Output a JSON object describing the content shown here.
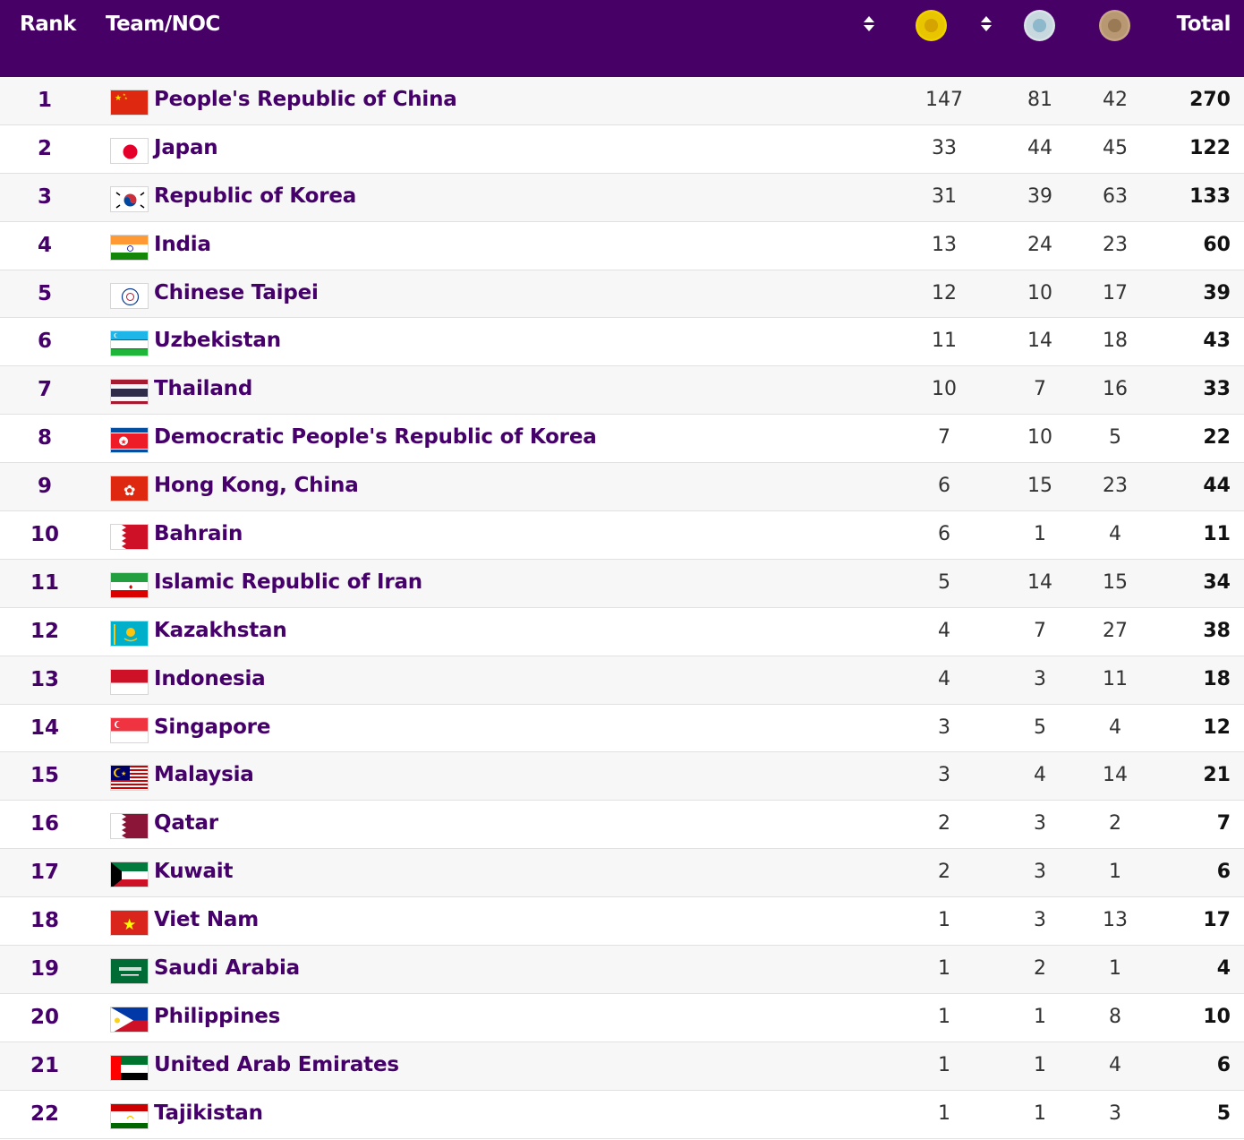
{
  "header": {
    "rank": "Rank",
    "team": "Team/NOC",
    "total": "Total",
    "medals": [
      {
        "name": "gold-medal-icon",
        "color": "#e8c200"
      },
      {
        "name": "silver-medal-icon",
        "color": "#c8d8df"
      },
      {
        "name": "bronze-medal-icon",
        "color": "#b89873"
      }
    ],
    "sort_icons": [
      "sort-icon",
      "sort-icon"
    ],
    "accent_color": "#460066"
  },
  "rows": [
    {
      "rank": "1",
      "team": "People's Republic of China",
      "flag": "china-flag-icon",
      "gold": "147",
      "silver": "81",
      "bronze": "42",
      "total": "270"
    },
    {
      "rank": "2",
      "team": "Japan",
      "flag": "japan-flag-icon",
      "gold": "33",
      "silver": "44",
      "bronze": "45",
      "total": "122"
    },
    {
      "rank": "3",
      "team": "Republic of Korea",
      "flag": "korea-flag-icon",
      "gold": "31",
      "silver": "39",
      "bronze": "63",
      "total": "133"
    },
    {
      "rank": "4",
      "team": "India",
      "flag": "india-flag-icon",
      "gold": "13",
      "silver": "24",
      "bronze": "23",
      "total": "60"
    },
    {
      "rank": "5",
      "team": "Chinese Taipei",
      "flag": "chinese-taipei-flag-icon",
      "gold": "12",
      "silver": "10",
      "bronze": "17",
      "total": "39"
    },
    {
      "rank": "6",
      "team": "Uzbekistan",
      "flag": "uzbekistan-flag-icon",
      "gold": "11",
      "silver": "14",
      "bronze": "18",
      "total": "43"
    },
    {
      "rank": "7",
      "team": "Thailand",
      "flag": "thailand-flag-icon",
      "gold": "10",
      "silver": "7",
      "bronze": "16",
      "total": "33"
    },
    {
      "rank": "8",
      "team": "Democratic People's Republic of Korea",
      "flag": "dpr-korea-flag-icon",
      "gold": "7",
      "silver": "10",
      "bronze": "5",
      "total": "22"
    },
    {
      "rank": "9",
      "team": "Hong Kong, China",
      "flag": "hong-kong-flag-icon",
      "gold": "6",
      "silver": "15",
      "bronze": "23",
      "total": "44"
    },
    {
      "rank": "10",
      "team": "Bahrain",
      "flag": "bahrain-flag-icon",
      "gold": "6",
      "silver": "1",
      "bronze": "4",
      "total": "11"
    },
    {
      "rank": "11",
      "team": "Islamic Republic of Iran",
      "flag": "iran-flag-icon",
      "gold": "5",
      "silver": "14",
      "bronze": "15",
      "total": "34"
    },
    {
      "rank": "12",
      "team": "Kazakhstan",
      "flag": "kazakhstan-flag-icon",
      "gold": "4",
      "silver": "7",
      "bronze": "27",
      "total": "38"
    },
    {
      "rank": "13",
      "team": "Indonesia",
      "flag": "indonesia-flag-icon",
      "gold": "4",
      "silver": "3",
      "bronze": "11",
      "total": "18"
    },
    {
      "rank": "14",
      "team": "Singapore",
      "flag": "singapore-flag-icon",
      "gold": "3",
      "silver": "5",
      "bronze": "4",
      "total": "12"
    },
    {
      "rank": "15",
      "team": "Malaysia",
      "flag": "malaysia-flag-icon",
      "gold": "3",
      "silver": "4",
      "bronze": "14",
      "total": "21"
    },
    {
      "rank": "16",
      "team": "Qatar",
      "flag": "qatar-flag-icon",
      "gold": "2",
      "silver": "3",
      "bronze": "2",
      "total": "7"
    },
    {
      "rank": "17",
      "team": "Kuwait",
      "flag": "kuwait-flag-icon",
      "gold": "2",
      "silver": "3",
      "bronze": "1",
      "total": "6"
    },
    {
      "rank": "18",
      "team": "Viet Nam",
      "flag": "viet-nam-flag-icon",
      "gold": "1",
      "silver": "3",
      "bronze": "13",
      "total": "17"
    },
    {
      "rank": "19",
      "team": "Saudi Arabia",
      "flag": "saudi-arabia-flag-icon",
      "gold": "1",
      "silver": "2",
      "bronze": "1",
      "total": "4"
    },
    {
      "rank": "20",
      "team": "Philippines",
      "flag": "philippines-flag-icon",
      "gold": "1",
      "silver": "1",
      "bronze": "8",
      "total": "10"
    },
    {
      "rank": "21",
      "team": "United Arab Emirates",
      "flag": "uae-flag-icon",
      "gold": "1",
      "silver": "1",
      "bronze": "4",
      "total": "6"
    },
    {
      "rank": "22",
      "team": "Tajikistan",
      "flag": "tajikistan-flag-icon",
      "gold": "1",
      "silver": "1",
      "bronze": "3",
      "total": "5"
    }
  ]
}
